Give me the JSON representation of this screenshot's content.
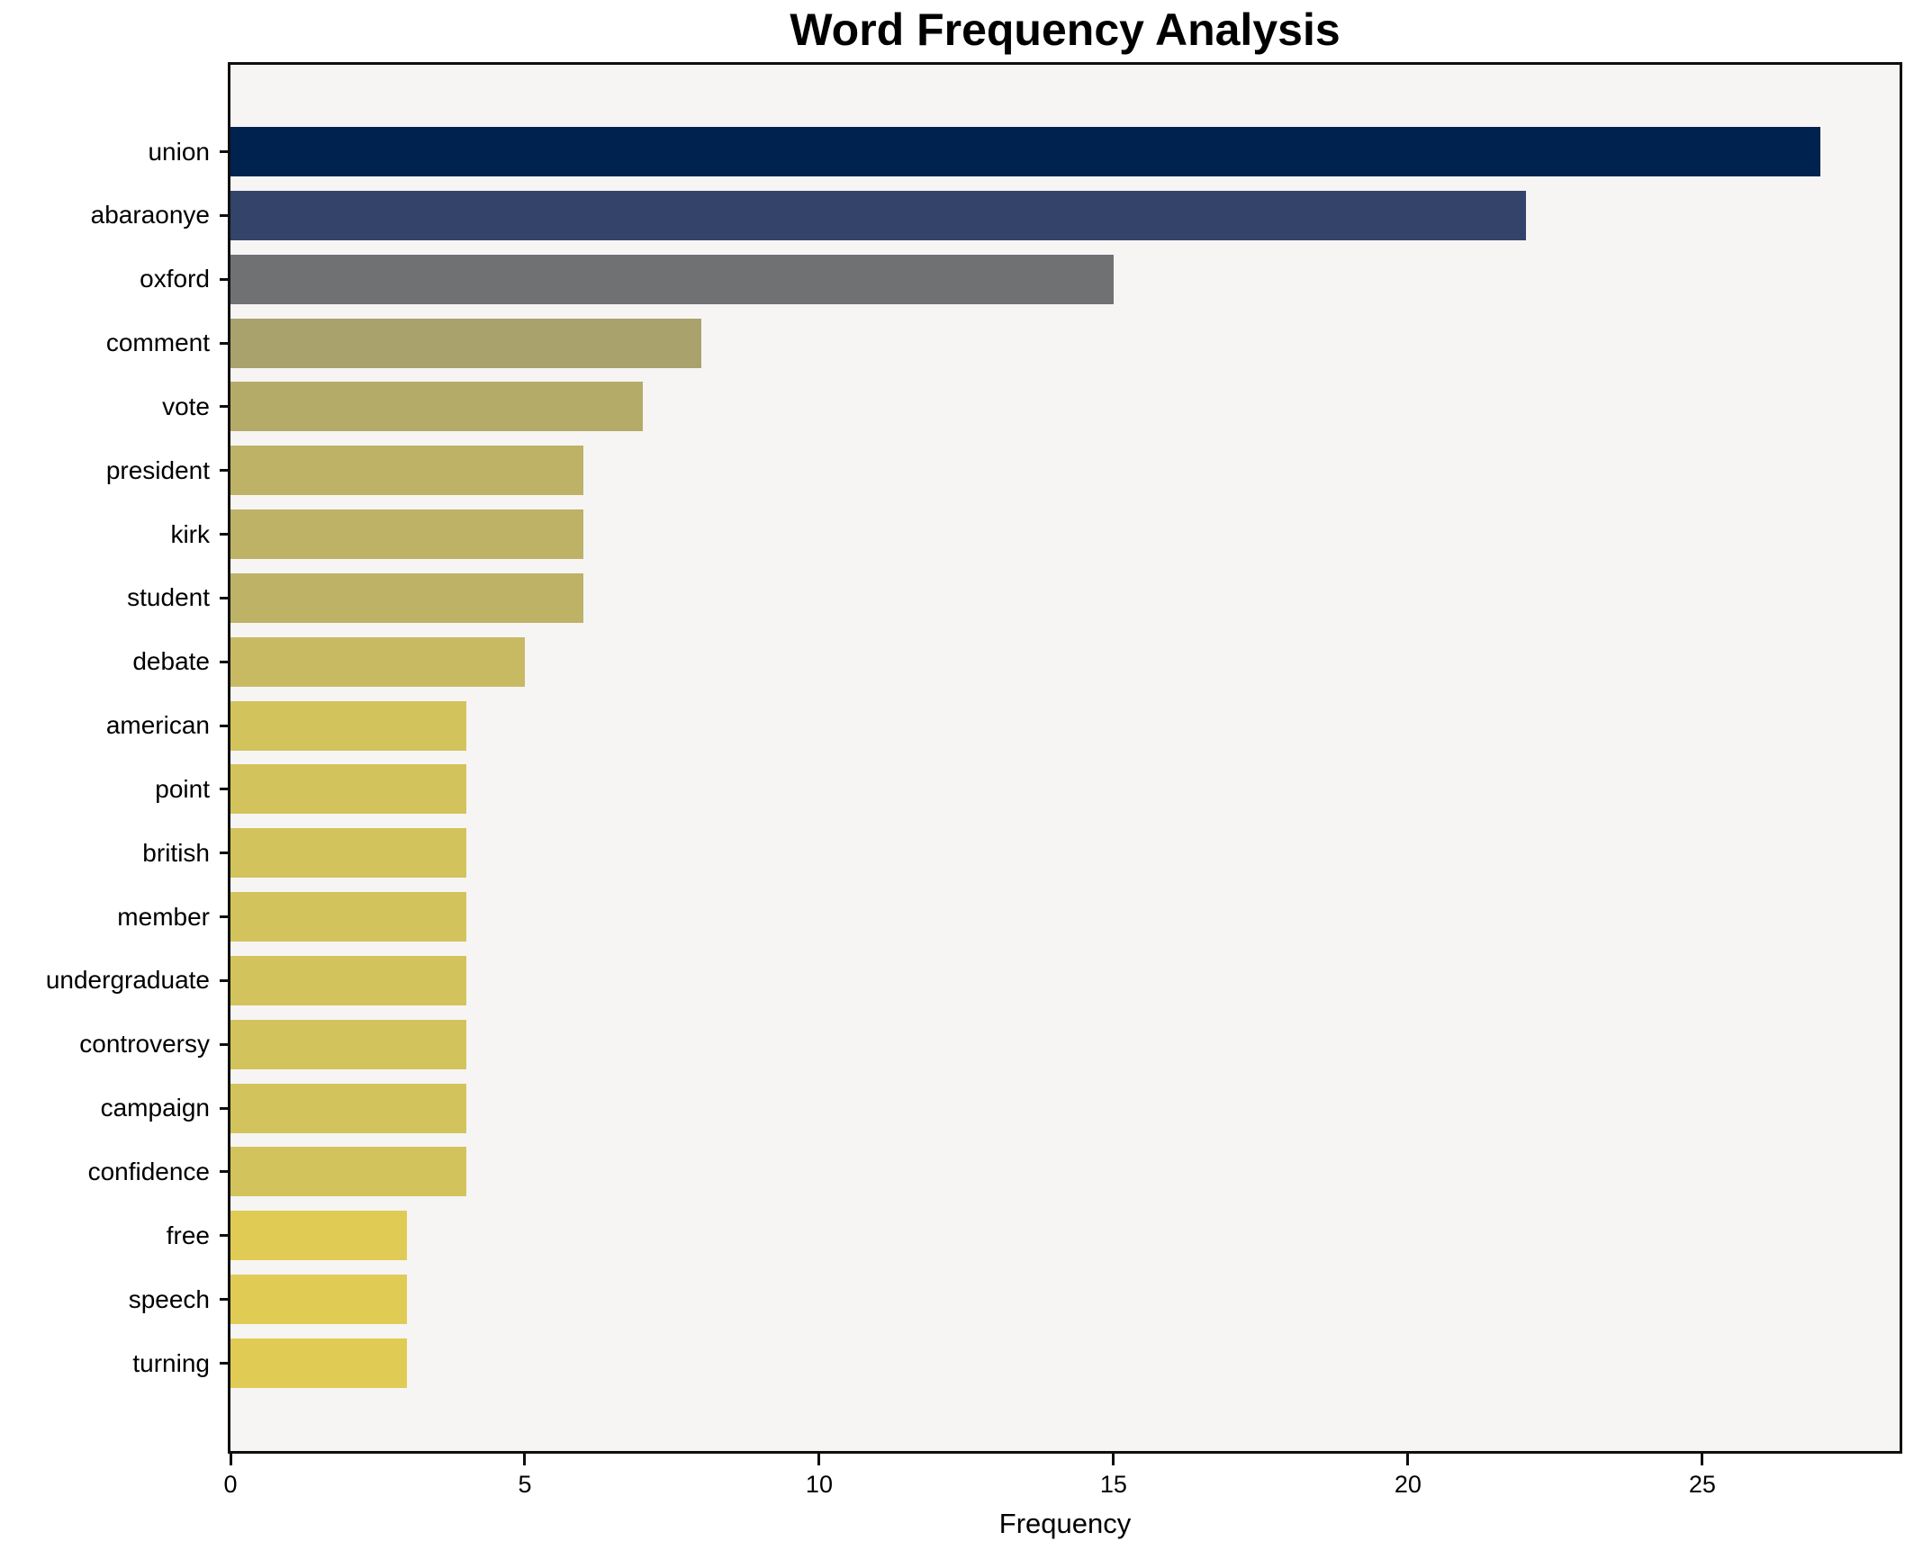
{
  "figure": {
    "background": "#ffffff",
    "axes_background": "#f6f5f4",
    "spine_color": "#0f0f0f",
    "text_color": "#000000"
  },
  "chart_data": {
    "type": "bar",
    "orientation": "horizontal",
    "title": "Word Frequency Analysis",
    "xlabel": "Frequency",
    "ylabel": "",
    "categories": [
      "union",
      "abaraonye",
      "oxford",
      "comment",
      "vote",
      "president",
      "kirk",
      "student",
      "debate",
      "american",
      "point",
      "british",
      "member",
      "undergraduate",
      "controversy",
      "campaign",
      "confidence",
      "free",
      "speech",
      "turning"
    ],
    "values": [
      27,
      22,
      15,
      8,
      7,
      6,
      6,
      6,
      5,
      4,
      4,
      4,
      4,
      4,
      4,
      4,
      4,
      3,
      3,
      3
    ],
    "bar_colors": [
      "#00224e",
      "#334369",
      "#6f7173",
      "#a9a26c",
      "#b4ab68",
      "#bdb266",
      "#bdb266",
      "#bdb266",
      "#c8ba63",
      "#d3c35c",
      "#d3c35c",
      "#d3c35c",
      "#d3c35c",
      "#d3c35c",
      "#d3c35c",
      "#d3c35c",
      "#d3c35c",
      "#e0cb55",
      "#e0cb55",
      "#e0cb55"
    ],
    "xlim": [
      0,
      28.35
    ],
    "xticks": [
      0,
      5,
      10,
      15,
      20,
      25
    ],
    "grid": false,
    "legend": null
  }
}
